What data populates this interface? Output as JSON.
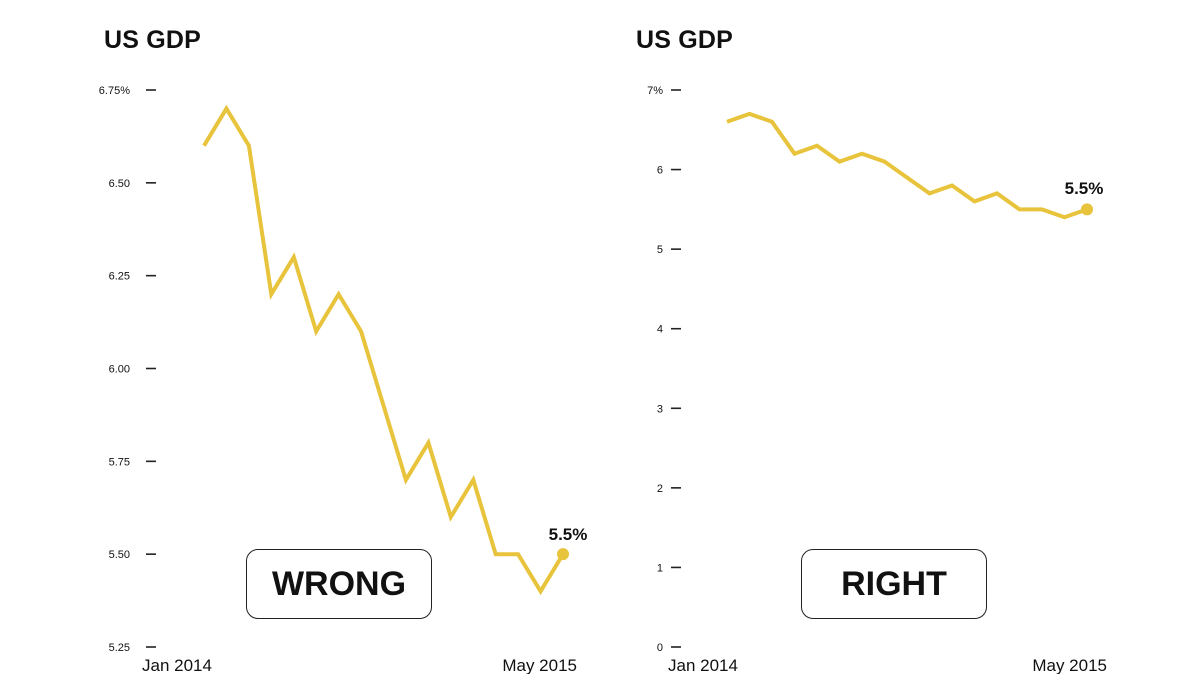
{
  "colors": {
    "line": "#E8C33C",
    "text": "#111111",
    "tick": "#222222"
  },
  "chart_data": [
    {
      "type": "line",
      "title": "US GDP",
      "ylim": [
        5.25,
        6.75
      ],
      "yticks": [
        5.25,
        5.5,
        5.75,
        6.0,
        6.25,
        6.5,
        6.75
      ],
      "ytick_labels": [
        "5.25",
        "5.50",
        "5.75",
        "6.00",
        "6.25",
        "6.50",
        "6.75%"
      ],
      "x_labels": [
        "Jan 2014",
        "May 2015"
      ],
      "series": [
        {
          "values": [
            6.6,
            6.7,
            6.6,
            6.2,
            6.3,
            6.1,
            6.2,
            6.1,
            5.9,
            5.7,
            5.8,
            5.6,
            5.7,
            5.5,
            5.5,
            5.4,
            5.5
          ]
        }
      ],
      "end_label": "5.5%",
      "grid": false,
      "verdict": "WRONG"
    },
    {
      "type": "line",
      "title": "US GDP",
      "ylim": [
        0,
        7
      ],
      "yticks": [
        0,
        1,
        2,
        3,
        4,
        5,
        6,
        7
      ],
      "ytick_labels": [
        "0",
        "1",
        "2",
        "3",
        "4",
        "5",
        "6",
        "7%"
      ],
      "x_labels": [
        "Jan 2014",
        "May 2015"
      ],
      "series": [
        {
          "values": [
            6.6,
            6.7,
            6.6,
            6.2,
            6.3,
            6.1,
            6.2,
            6.1,
            5.9,
            5.7,
            5.8,
            5.6,
            5.7,
            5.5,
            5.5,
            5.4,
            5.5
          ]
        }
      ],
      "end_label": "5.5%",
      "grid": false,
      "verdict": "RIGHT"
    }
  ]
}
